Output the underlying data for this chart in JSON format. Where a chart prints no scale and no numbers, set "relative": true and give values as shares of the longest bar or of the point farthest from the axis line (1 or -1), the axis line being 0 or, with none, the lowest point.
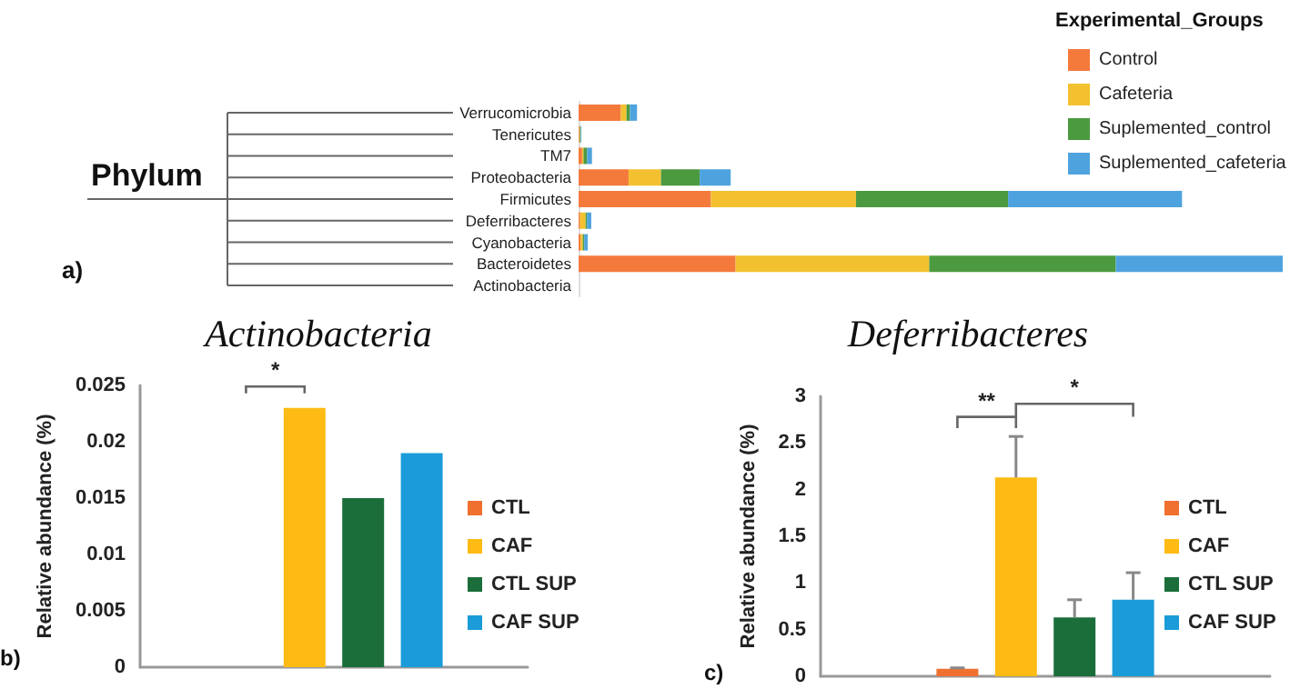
{
  "chart_data": [
    {
      "type": "bar",
      "orientation": "horizontal",
      "stacked": true,
      "relative": true,
      "legend": "top right",
      "legend_title": "Experimental_Groups",
      "grid": false,
      "categories": [
        "Verrucomicrobia",
        "Tenericutes",
        "TM7",
        "Proteobacteria",
        "Firmicutes",
        "Deferribacteres",
        "Cyanobacteria",
        "Bacteroidetes",
        "Actinobacteria"
      ],
      "annotations": [
        "Phylum",
        "a)"
      ],
      "series": [
        {
          "name": "Control",
          "color": "#f47a3c",
          "values": [
            0.06,
            0.001,
            0.005,
            0.071,
            0.188,
            0.002,
            0.003,
            0.223,
            0
          ]
        },
        {
          "name": "Cafeteria",
          "color": "#f3c12f",
          "values": [
            0.008,
            0.001,
            0.002,
            0.046,
            0.206,
            0.008,
            0.003,
            0.275,
            0
          ]
        },
        {
          "name": "Suplemented_control",
          "color": "#4c9a3f",
          "values": [
            0.005,
            0.001,
            0.005,
            0.055,
            0.216,
            0.002,
            0.002,
            0.265,
            0
          ]
        },
        {
          "name": "Suplemented_cafeteria",
          "color": "#4ea3de",
          "values": [
            0.01,
            0.001,
            0.007,
            0.044,
            0.247,
            0.006,
            0.005,
            0.237,
            0
          ]
        }
      ]
    },
    {
      "type": "bar",
      "title": "Actinobacteria",
      "ylabel": "Relative abundance (%)",
      "legend": "right",
      "grid": false,
      "categories": [
        null
      ],
      "ylim": [
        0,
        0.025
      ],
      "yticks": [
        0,
        0.005,
        0.01,
        0.015,
        0.02,
        0.025
      ],
      "annotations": [
        "*",
        "b)"
      ],
      "series": [
        {
          "name": "CTL",
          "color": "#f0702f",
          "values": [
            0
          ]
        },
        {
          "name": "CAF",
          "color": "#fdbb13",
          "values": [
            0.023
          ]
        },
        {
          "name": "CTL SUP",
          "color": "#1b6e3a",
          "values": [
            0.015
          ]
        },
        {
          "name": "CAF SUP",
          "color": "#1b9cd8",
          "values": [
            0.019
          ]
        }
      ]
    },
    {
      "type": "bar",
      "title": "Deferribacteres",
      "ylabel": "Relative abundance (%)",
      "legend": "right",
      "grid": false,
      "categories": [
        null
      ],
      "ylim": [
        0,
        3
      ],
      "yticks": [
        0,
        0.5,
        1,
        1.5,
        2,
        2.5,
        3
      ],
      "annotations": [
        "**",
        "*",
        "c)"
      ],
      "series": [
        {
          "name": "CTL",
          "color": "#f0702f",
          "values": [
            0.08
          ],
          "errors": [
            [
              0.08,
              0.09
            ]
          ]
        },
        {
          "name": "CAF",
          "color": "#fdbb13",
          "values": [
            2.13
          ],
          "errors": [
            [
              2.13,
              2.57
            ]
          ]
        },
        {
          "name": "CTL SUP",
          "color": "#1b6e3a",
          "values": [
            0.63
          ],
          "errors": [
            [
              0.63,
              0.82
            ]
          ]
        },
        {
          "name": "CAF SUP",
          "color": "#1b9cd8",
          "values": [
            0.82
          ],
          "errors": [
            [
              0.82,
              1.11
            ]
          ]
        }
      ]
    }
  ]
}
